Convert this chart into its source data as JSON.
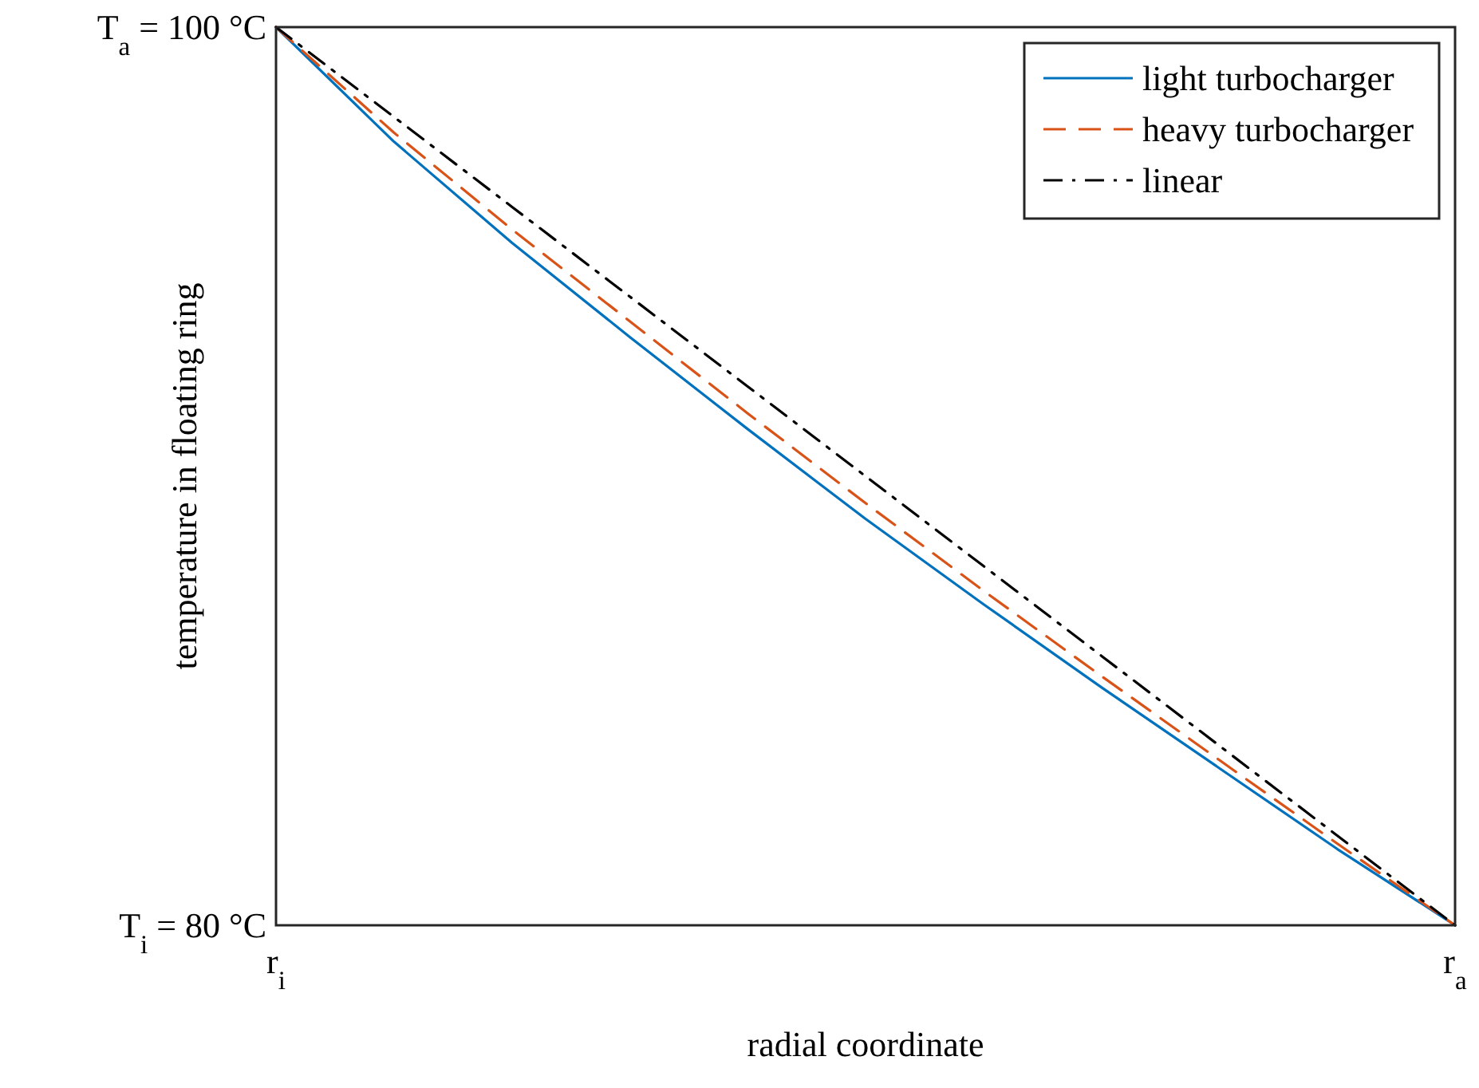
{
  "chart_data": {
    "type": "line",
    "xlabel": "radial coordinate",
    "ylabel": "temperature in floating ring",
    "categories": [
      "r$_{i}$",
      null,
      null,
      null,
      null,
      null,
      null,
      null,
      null,
      null,
      "r$_{a}$"
    ],
    "series": [
      {
        "name": "light turbocharger",
        "color": "#0072bd",
        "line_style": "solid",
        "values": [
          100,
          97.45,
          95.2,
          93.1,
          91.05,
          89.05,
          87.15,
          85.3,
          83.5,
          81.7,
          80
        ]
      },
      {
        "name": "heavy turbocharger",
        "color": "#d95319",
        "line_style": "dashed",
        "values": [
          100,
          97.65,
          95.5,
          93.45,
          91.4,
          89.4,
          87.45,
          85.55,
          83.68,
          81.82,
          80
        ]
      },
      {
        "name": "linear",
        "color": "#000000",
        "line_style": "dashdot",
        "values": [
          100,
          98,
          96,
          94,
          92,
          90,
          88,
          86,
          84,
          82,
          80
        ]
      }
    ],
    "ylim": [
      80,
      100
    ],
    "yticks": [
      {
        "value": 80,
        "label": "T$_{i}$ = 80 °C"
      },
      {
        "value": 100,
        "label": "T$_{a}$ = 100 °C"
      }
    ],
    "legend": "top right",
    "marker": "none"
  }
}
